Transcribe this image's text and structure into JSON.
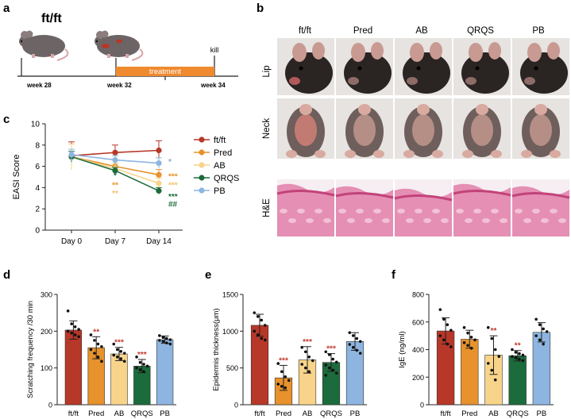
{
  "panels": {
    "a": {
      "letter": "a",
      "genotype": "ft/ft",
      "weeks": [
        "week 28",
        "week 32",
        "week 34"
      ],
      "treatment": "treatment",
      "kill": "kill",
      "colors": {
        "treatment_bar": "#ef8a2e",
        "mouse": "#6d6565"
      }
    },
    "b": {
      "letter": "b",
      "columns": [
        "ft/ft",
        "Pred",
        "AB",
        "QRQS",
        "PB"
      ],
      "rows": [
        "Lip",
        "Neck",
        "H&E"
      ],
      "colors": {
        "photo_bg": "#e6e3e0",
        "fur": "#2a2423",
        "tissue": "#e58fb4"
      }
    },
    "f": {
      "letter": "f"
    }
  },
  "colors": {
    "ftft": "#b73728",
    "Pred": "#e7922c",
    "AB": "#f8d48a",
    "QRQS": "#1c6b3c",
    "PB": "#8eb5e0",
    "sig_red": "#c0392b",
    "sig_orange": "#e7922c",
    "sig_yellow": "#f3c26b",
    "sig_green": "#1c6b3c",
    "sig_blue": "#7fa7d6"
  },
  "chart_data": [
    {
      "panel": "c",
      "type": "line",
      "ylabel": "EASI Score",
      "categories": [
        "Day 0",
        "Day 7",
        "Day 14"
      ],
      "ylim": [
        0,
        10
      ],
      "yticks": [
        "0",
        "2",
        "4",
        "6",
        "8",
        "10"
      ],
      "series": [
        {
          "name": "ft/ft",
          "values": [
            7.0,
            7.3,
            7.5
          ],
          "err": [
            1.3,
            0.7,
            0.9
          ]
        },
        {
          "name": "Pred",
          "values": [
            6.9,
            6.0,
            5.2
          ],
          "err": [
            1.2,
            0.6,
            0.5
          ]
        },
        {
          "name": "AB",
          "values": [
            6.9,
            5.8,
            4.4
          ],
          "err": [
            1.2,
            0.5,
            0.5
          ]
        },
        {
          "name": "QRQS",
          "values": [
            6.9,
            5.6,
            3.7
          ],
          "err": [
            0.5,
            0.3,
            0.3
          ]
        },
        {
          "name": "PB",
          "values": [
            7.1,
            6.6,
            6.3
          ],
          "err": [
            0.5,
            0.4,
            0.5
          ]
        }
      ],
      "annotations": [
        {
          "x": "Day 7",
          "y": 4.9,
          "text": "*",
          "series": "QRQS"
        },
        {
          "x": "Day 7",
          "y": 4.0,
          "text": "**",
          "series": "Pred"
        },
        {
          "x": "Day 7",
          "y": 3.2,
          "text": "**",
          "series": "AB"
        },
        {
          "x": "Day 14",
          "y": 6.2,
          "text": "*",
          "series": "PB"
        },
        {
          "x": "Day 14",
          "y": 4.8,
          "text": "***",
          "series": "Pred"
        },
        {
          "x": "Day 14",
          "y": 4.0,
          "text": "***",
          "series": "AB"
        },
        {
          "x": "Day 14",
          "y": 2.9,
          "text": "***",
          "series": "QRQS"
        },
        {
          "x": "Day 14",
          "y": 2.2,
          "text": "##",
          "series": "QRQS"
        }
      ],
      "legend": [
        "ft/ft",
        "Pred",
        "AB",
        "QRQS",
        "PB"
      ]
    },
    {
      "panel": "d",
      "type": "bar",
      "ylabel": "Scratching frequency /30 min",
      "categories": [
        "ft/ft",
        "Pred",
        "AB",
        "QRQS",
        "PB"
      ],
      "values": [
        203,
        155,
        138,
        105,
        177
      ],
      "err": [
        25,
        30,
        18,
        18,
        10
      ],
      "sig": [
        "",
        "**",
        "***",
        "***",
        ""
      ],
      "ylim": [
        0,
        300
      ],
      "yticks": [
        "0",
        "100",
        "200",
        "300"
      ],
      "points": [
        [
          255,
          220,
          212,
          205,
          200,
          195,
          190,
          185
        ],
        [
          190,
          175,
          165,
          158,
          150,
          140,
          130,
          118
        ],
        [
          165,
          150,
          145,
          140,
          135,
          130,
          125,
          118
        ],
        [
          130,
          115,
          110,
          105,
          100,
          95,
          90
        ],
        [
          188,
          183,
          180,
          177,
          175,
          172,
          168,
          165
        ]
      ]
    },
    {
      "panel": "e",
      "type": "bar",
      "ylabel": "Epidermis thickness(μm)",
      "categories": [
        "ft/ft",
        "Pred",
        "AB",
        "QRQS",
        "PB"
      ],
      "values": [
        1080,
        365,
        610,
        575,
        860
      ],
      "err": [
        150,
        170,
        180,
        120,
        120
      ],
      "sig": [
        "",
        "***",
        "***",
        "***",
        ""
      ],
      "ylim": [
        0,
        1500
      ],
      "yticks": [
        "0",
        "500",
        "1000",
        "1500"
      ],
      "points": [
        [
          1250,
          1200,
          1150,
          1080,
          1000,
          950,
          900,
          880
        ],
        [
          560,
          450,
          380,
          330,
          280,
          250,
          230
        ],
        [
          780,
          720,
          650,
          600,
          550,
          500,
          450
        ],
        [
          720,
          680,
          620,
          580,
          540,
          500,
          470,
          430,
          400
        ],
        [
          980,
          940,
          900,
          860,
          820,
          780,
          740,
          700
        ]
      ]
    },
    {
      "panel": "f",
      "type": "bar",
      "ylabel": "IgE (ng/ml)",
      "categories": [
        "ft/ft",
        "Pred",
        "AB",
        "QRQS",
        "PB"
      ],
      "values": [
        535,
        475,
        360,
        355,
        525
      ],
      "err": [
        95,
        65,
        140,
        38,
        70
      ],
      "sig": [
        "",
        "",
        "**",
        "**",
        ""
      ],
      "ylim": [
        0,
        800
      ],
      "yticks": [
        "0",
        "200",
        "400",
        "600",
        "800"
      ],
      "points": [
        [
          690,
          620,
          580,
          540,
          500,
          470,
          440,
          420
        ],
        [
          560,
          520,
          490,
          470,
          450,
          430,
          410
        ],
        [
          560,
          480,
          400,
          350,
          300,
          250,
          180
        ],
        [
          400,
          380,
          370,
          360,
          350,
          340,
          330,
          320
        ],
        [
          620,
          580,
          550,
          530,
          500,
          470,
          440
        ]
      ]
    }
  ]
}
